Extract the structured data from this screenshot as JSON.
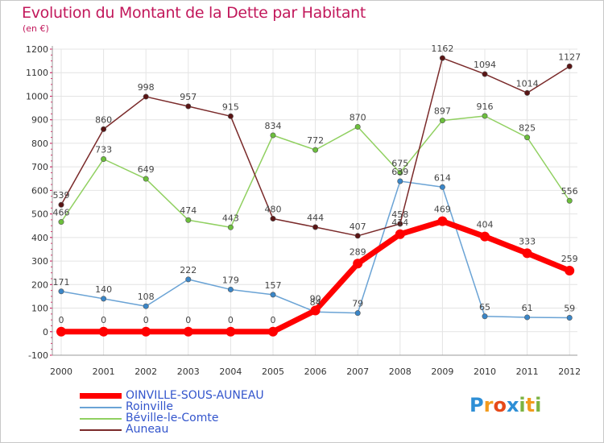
{
  "title": "Evolution du Montant de la Dette par Habitant",
  "unit_label": "(en €)",
  "logo": {
    "text": "Proxiti",
    "letters": [
      "P",
      "r",
      "o",
      "x",
      "i",
      "t",
      "i"
    ],
    "colors": [
      "#2e8fd6",
      "#f29b1d",
      "#e64a19",
      "#2e8fd6",
      "#7cb342",
      "#f29b1d",
      "#7cb342"
    ]
  },
  "chart_data": {
    "type": "line",
    "x": [
      "2000",
      "2001",
      "2002",
      "2003",
      "2004",
      "2005",
      "2006",
      "2007",
      "2008",
      "2009",
      "2010",
      "2011",
      "2012"
    ],
    "ylim": [
      -100,
      1200
    ],
    "yticks": [
      -100,
      0,
      100,
      200,
      300,
      400,
      500,
      600,
      700,
      800,
      900,
      1000,
      1100,
      1200
    ],
    "grid": true,
    "legend_position": "bottom-left",
    "series": [
      {
        "name": "OINVILLE-SOUS-AUNEAU",
        "color": "#ff0000",
        "marker": "#ff0000",
        "thick": true,
        "values": [
          0,
          0,
          0,
          0,
          0,
          0,
          90,
          289,
          414,
          469,
          404,
          333,
          259
        ],
        "labels": [
          "0",
          "0",
          "0",
          "0",
          "0",
          "0",
          "90",
          "289",
          "414",
          "469",
          "404",
          "333",
          "259"
        ]
      },
      {
        "name": "Roinville",
        "color": "#6aa3d5",
        "marker": "#3a86c8",
        "thick": false,
        "values": [
          171,
          140,
          108,
          222,
          179,
          157,
          84,
          79,
          639,
          614,
          65,
          61,
          59
        ],
        "labels": [
          "171",
          "140",
          "108",
          "222",
          "179",
          "157",
          "84",
          "79",
          "639",
          "614",
          "65",
          "61",
          "59"
        ]
      },
      {
        "name": "Béville-le-Comte",
        "color": "#90d060",
        "marker": "#6cbf3c",
        "thick": false,
        "values": [
          466,
          733,
          649,
          474,
          443,
          834,
          772,
          870,
          675,
          897,
          916,
          825,
          556
        ],
        "labels": [
          "466",
          "733",
          "649",
          "474",
          "443",
          "834",
          "772",
          "870",
          "675",
          "897",
          "916",
          "825",
          "556"
        ]
      },
      {
        "name": "Auneau",
        "color": "#7a2a2a",
        "marker": "#5a1515",
        "thick": false,
        "values": [
          539,
          860,
          998,
          957,
          915,
          480,
          444,
          407,
          458,
          1162,
          1094,
          1014,
          1127
        ],
        "labels": [
          "539",
          "860",
          "998",
          "957",
          "915",
          "480",
          "444",
          "407",
          "458",
          "1162",
          "1094",
          "1014",
          "1127"
        ]
      }
    ]
  }
}
